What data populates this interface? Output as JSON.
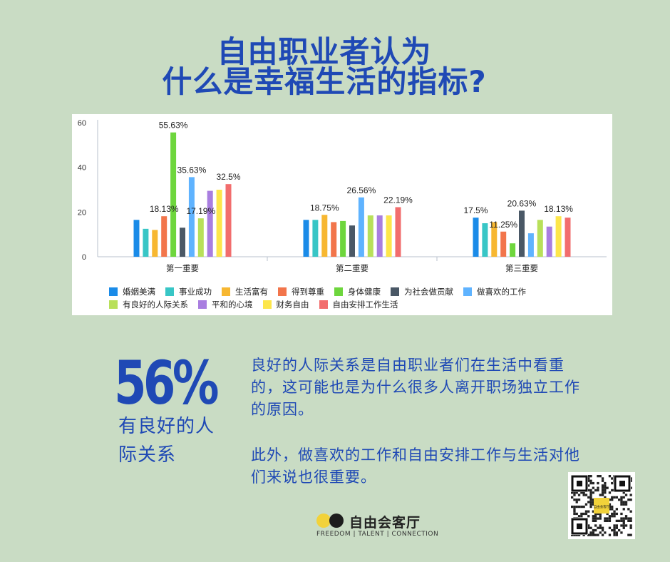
{
  "header": {
    "title_line1": "自由职业者认为",
    "title_line2": "什么是幸福生活的指标?"
  },
  "colors": {
    "background": "#c9dcc4",
    "title": "#1f49b5"
  },
  "chart_data": {
    "type": "bar",
    "categories": [
      "第一重要",
      "第二重要",
      "第三重要"
    ],
    "ylim": [
      0,
      60
    ],
    "yticks": [
      0,
      20,
      40,
      60
    ],
    "grid": false,
    "legend_position": "bottom",
    "series": [
      {
        "name": "婚姻美满",
        "color": "#1a8be8",
        "values": [
          16.5,
          16.5,
          17.5
        ]
      },
      {
        "name": "事业成功",
        "color": "#38c6c6",
        "values": [
          12.5,
          16.5,
          15.0
        ]
      },
      {
        "name": "生活富有",
        "color": "#f7b731",
        "values": [
          12.0,
          18.75,
          15.5
        ]
      },
      {
        "name": "得到尊重",
        "color": "#f2754b",
        "values": [
          18.13,
          15.5,
          11.25
        ]
      },
      {
        "name": "身体健康",
        "color": "#6ed63d",
        "values": [
          55.63,
          16.0,
          6.0
        ]
      },
      {
        "name": "为社会做贡献",
        "color": "#4a5866",
        "values": [
          13.0,
          14.0,
          20.63
        ]
      },
      {
        "name": "做喜欢的工作",
        "color": "#5fb3ff",
        "values": [
          35.63,
          26.56,
          10.5
        ]
      },
      {
        "name": "有良好的人际关系",
        "color": "#b8e05a",
        "values": [
          17.19,
          18.5,
          16.5
        ]
      },
      {
        "name": "平和的心境",
        "color": "#a97ee0",
        "values": [
          29.5,
          18.5,
          13.5
        ]
      },
      {
        "name": "财务自由",
        "color": "#fde64b",
        "values": [
          30.0,
          18.5,
          18.13
        ]
      },
      {
        "name": "自由安排工作生活",
        "color": "#f26d6d",
        "values": [
          32.5,
          22.19,
          17.5
        ]
      }
    ],
    "data_labels": [
      {
        "series": 3,
        "category": 0,
        "text": "18.13%"
      },
      {
        "series": 4,
        "category": 0,
        "text": "55.63%"
      },
      {
        "series": 6,
        "category": 0,
        "text": "35.63%"
      },
      {
        "series": 7,
        "category": 0,
        "text": "17.19%"
      },
      {
        "series": 10,
        "category": 0,
        "text": "32.5%"
      },
      {
        "series": 2,
        "category": 1,
        "text": "18.75%"
      },
      {
        "series": 6,
        "category": 1,
        "text": "26.56%"
      },
      {
        "series": 10,
        "category": 1,
        "text": "22.19%"
      },
      {
        "series": 0,
        "category": 2,
        "text": "17.5%"
      },
      {
        "series": 3,
        "category": 2,
        "text": "11.25%"
      },
      {
        "series": 5,
        "category": 2,
        "text": "20.63%"
      },
      {
        "series": 9,
        "category": 2,
        "text": "18.13%"
      }
    ]
  },
  "highlight": {
    "percent": "56%",
    "caption": "有良好的人际关系"
  },
  "paragraphs": {
    "p1": "良好的人际关系是自由职业者们在生活中看重的，这可能也是为什么很多人离开职场独立工作的原因。",
    "p2": "此外，做喜欢的工作和自由安排工作与生活对他们来说也很重要。"
  },
  "brand": {
    "name": "自由会客厅",
    "tagline": "FREEDOM | TALENT | CONNECTION",
    "qr_badge": "自由会客厅"
  }
}
